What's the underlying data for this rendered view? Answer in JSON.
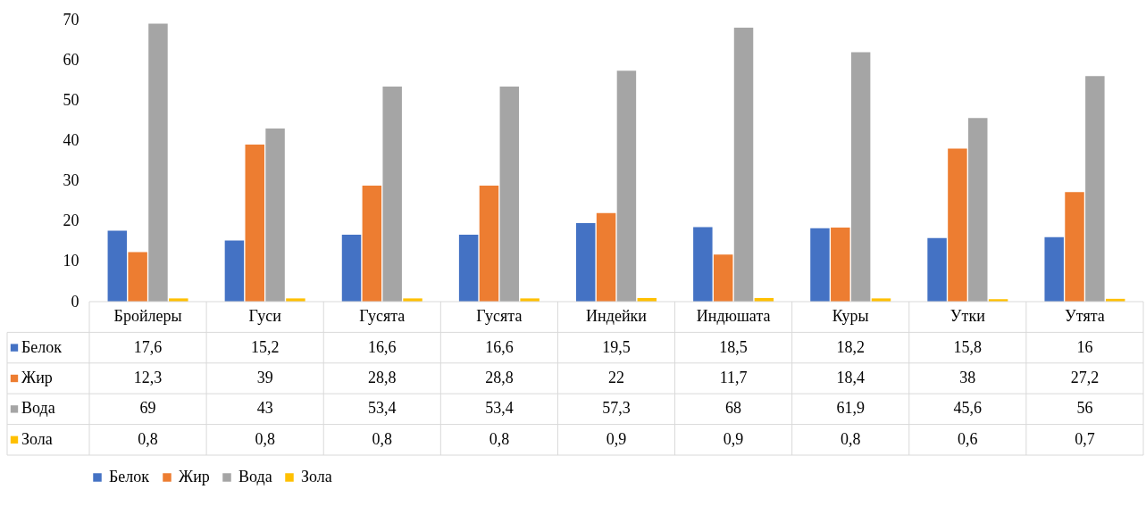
{
  "chart_data": {
    "type": "bar",
    "categories": [
      "Бройлеры",
      "Гуси",
      "Гусята",
      "Гусята",
      "Индейки",
      "Индюшата",
      "Куры",
      "Утки",
      "Утята"
    ],
    "series": [
      {
        "name": "Белок",
        "color": "#4472c4",
        "values": [
          17.6,
          15.2,
          16.6,
          16.6,
          19.5,
          18.5,
          18.2,
          15.8,
          16
        ],
        "value_labels": [
          "17,6",
          "15,2",
          "16,6",
          "16,6",
          "19,5",
          "18,5",
          "18,2",
          "15,8",
          "16"
        ]
      },
      {
        "name": "Жир",
        "color": "#ed7d31",
        "values": [
          12.3,
          39,
          28.8,
          28.8,
          22,
          11.7,
          18.4,
          38,
          27.2
        ],
        "value_labels": [
          "12,3",
          "39",
          "28,8",
          "28,8",
          "22",
          "11,7",
          "18,4",
          "38",
          "27,2"
        ]
      },
      {
        "name": "Вода",
        "color": "#a5a5a5",
        "values": [
          69,
          43,
          53.4,
          53.4,
          57.3,
          68,
          61.9,
          45.6,
          56
        ],
        "value_labels": [
          "69",
          "43",
          "53,4",
          "53,4",
          "57,3",
          "68",
          "61,9",
          "45,6",
          "56"
        ]
      },
      {
        "name": "Зола",
        "color": "#ffc000",
        "values": [
          0.8,
          0.8,
          0.8,
          0.8,
          0.9,
          0.9,
          0.8,
          0.6,
          0.7
        ],
        "value_labels": [
          "0,8",
          "0,8",
          "0,8",
          "0,8",
          "0,9",
          "0,9",
          "0,8",
          "0,6",
          "0,7"
        ]
      }
    ],
    "ylim": [
      0,
      70
    ],
    "yticks": [
      0,
      10,
      20,
      30,
      40,
      50,
      60,
      70
    ],
    "legend": "bottom"
  }
}
